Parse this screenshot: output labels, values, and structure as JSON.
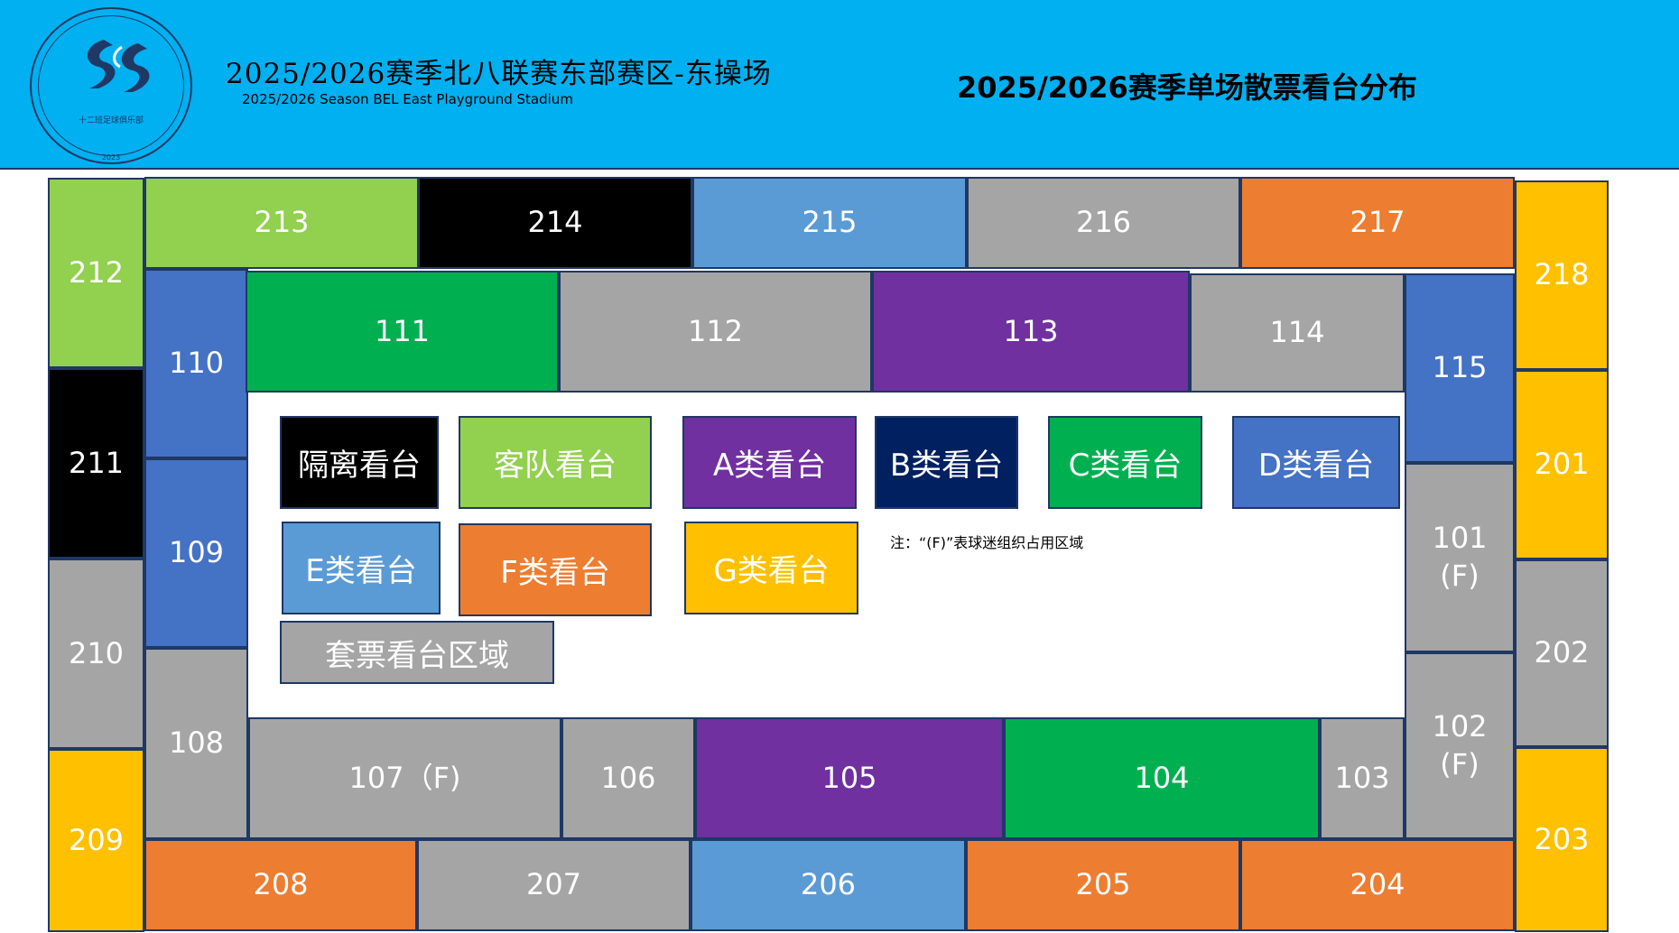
{
  "header": {
    "title_cn": "2025/2026赛季北八联赛东部赛区-东操场",
    "title_en": "2025/2026 Season BEL East Playground Stadium",
    "title_right": "2025/2026赛季单场散票看台分布",
    "logo_text": "十二班足球俱乐部",
    "logo_year": "2023"
  },
  "colors": {
    "header_bg": "#00b0f0",
    "isolation": "#000000",
    "away": "#92d050",
    "A": "#7030a0",
    "B": "#002060",
    "C": "#00b050",
    "D": "#4472c4",
    "E": "#5b9bd5",
    "F": "#ed7d31",
    "G": "#ffc000",
    "package": "#a5a5a5"
  },
  "sections": [
    {
      "label": "213",
      "category": "away"
    },
    {
      "label": "214",
      "category": "isolation"
    },
    {
      "label": "215",
      "category": "E"
    },
    {
      "label": "216",
      "category": "package"
    },
    {
      "label": "217",
      "category": "F"
    },
    {
      "label": "212",
      "category": "away"
    },
    {
      "label": "211",
      "category": "isolation"
    },
    {
      "label": "210",
      "category": "package"
    },
    {
      "label": "209",
      "category": "G"
    },
    {
      "label": "218",
      "category": "G"
    },
    {
      "label": "201",
      "category": "G"
    },
    {
      "label": "202",
      "category": "package"
    },
    {
      "label": "203",
      "category": "G"
    },
    {
      "label": "208",
      "category": "F"
    },
    {
      "label": "207",
      "category": "package"
    },
    {
      "label": "206",
      "category": "E"
    },
    {
      "label": "205",
      "category": "F"
    },
    {
      "label": "204",
      "category": "F"
    },
    {
      "label": "110",
      "category": "D"
    },
    {
      "label": "109",
      "category": "D"
    },
    {
      "label": "108",
      "category": "package"
    },
    {
      "label": "111",
      "category": "C"
    },
    {
      "label": "112",
      "category": "package"
    },
    {
      "label": "113",
      "category": "A"
    },
    {
      "label": "114",
      "category": "package"
    },
    {
      "label": "115",
      "category": "D"
    },
    {
      "label": "101\n(F)",
      "category": "package"
    },
    {
      "label": "102\n(F)",
      "category": "package"
    },
    {
      "label": "107（F)",
      "category": "package"
    },
    {
      "label": "106",
      "category": "package"
    },
    {
      "label": "105",
      "category": "A"
    },
    {
      "label": "104",
      "category": "C"
    },
    {
      "label": "103",
      "category": "package"
    }
  ],
  "legend": [
    {
      "label": "隔离看台",
      "category": "isolation"
    },
    {
      "label": "客队看台",
      "category": "away"
    },
    {
      "label": "A类看台",
      "category": "A"
    },
    {
      "label": "B类看台",
      "category": "B"
    },
    {
      "label": "C类看台",
      "category": "C"
    },
    {
      "label": "D类看台",
      "category": "D"
    },
    {
      "label": "E类看台",
      "category": "E"
    },
    {
      "label": "F类看台",
      "category": "F"
    },
    {
      "label": "G类看台",
      "category": "G"
    },
    {
      "label": "套票看台区域",
      "category": "package"
    }
  ],
  "note": "注：“(F)”表球迷组织占用区域"
}
